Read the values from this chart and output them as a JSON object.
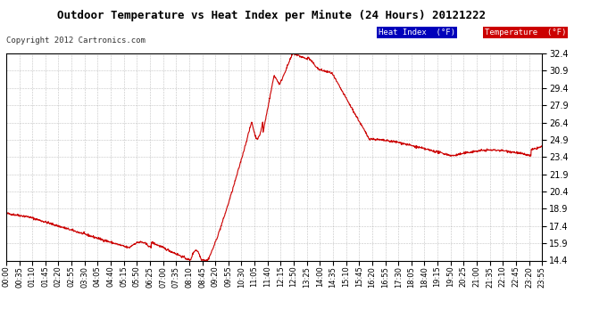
{
  "title": "Outdoor Temperature vs Heat Index per Minute (24 Hours) 20121222",
  "copyright": "Copyright 2012 Cartronics.com",
  "background_color": "#ffffff",
  "plot_bg_color": "#ffffff",
  "line_color": "#cc0000",
  "grid_color": "#999999",
  "y_ticks": [
    14.4,
    15.9,
    17.4,
    18.9,
    20.4,
    21.9,
    23.4,
    24.9,
    26.4,
    27.9,
    29.4,
    30.9,
    32.4
  ],
  "y_min": 14.4,
  "y_max": 32.4,
  "legend_heat_index_bg": "#0000bb",
  "legend_temp_bg": "#cc0000",
  "legend_heat_index_text": "Heat Index  (°F)",
  "legend_temp_text": "Temperature  (°F)",
  "x_tick_labels": [
    "00:00",
    "00:35",
    "01:10",
    "01:45",
    "02:20",
    "02:55",
    "03:30",
    "04:05",
    "04:40",
    "05:15",
    "05:50",
    "06:25",
    "07:00",
    "07:35",
    "08:10",
    "08:45",
    "09:20",
    "09:55",
    "10:30",
    "11:05",
    "11:40",
    "12:15",
    "12:50",
    "13:25",
    "14:00",
    "14:35",
    "15:10",
    "15:45",
    "16:20",
    "16:55",
    "17:30",
    "18:05",
    "18:40",
    "19:15",
    "19:50",
    "20:25",
    "21:00",
    "21:35",
    "22:10",
    "22:45",
    "23:20",
    "23:55"
  ],
  "n_points": 1440
}
